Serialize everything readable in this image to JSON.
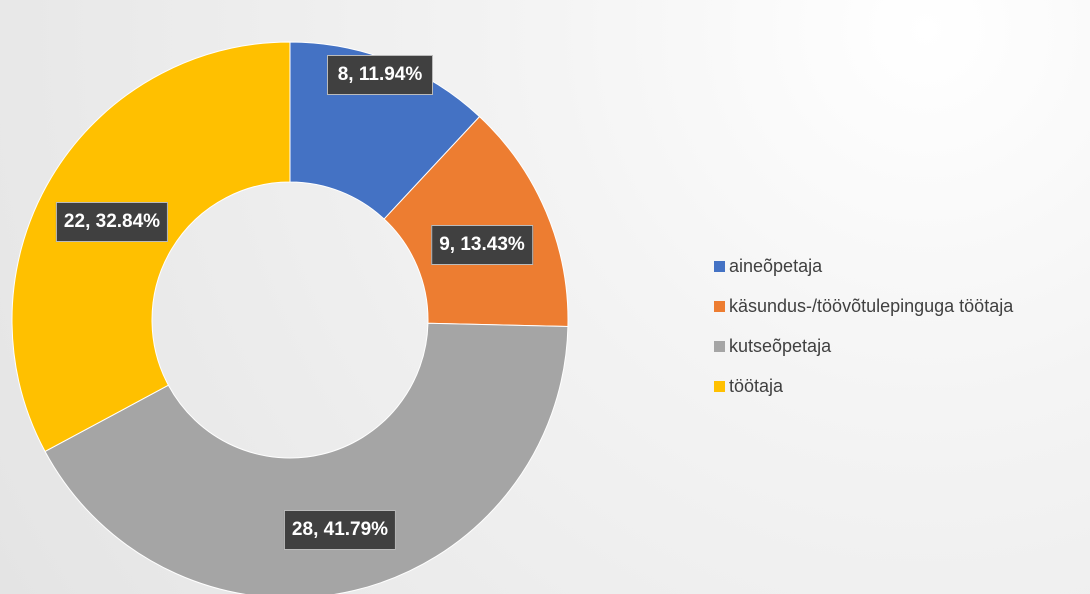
{
  "chart_data": {
    "type": "donut",
    "categories": [
      "aineõpetaja",
      "käsundus-/töövõtulepinguga töötaja",
      "kutseõpetaja",
      "töötaja"
    ],
    "values": [
      8,
      9,
      28,
      22
    ],
    "value_labels": [
      "8, 11.94%",
      "9, 13.43%",
      "28, 41.79%",
      "22, 32.84%"
    ],
    "colors": [
      "#4472c4",
      "#ed7d31",
      "#a5a5a5",
      "#ffc000"
    ],
    "legend": "right"
  }
}
